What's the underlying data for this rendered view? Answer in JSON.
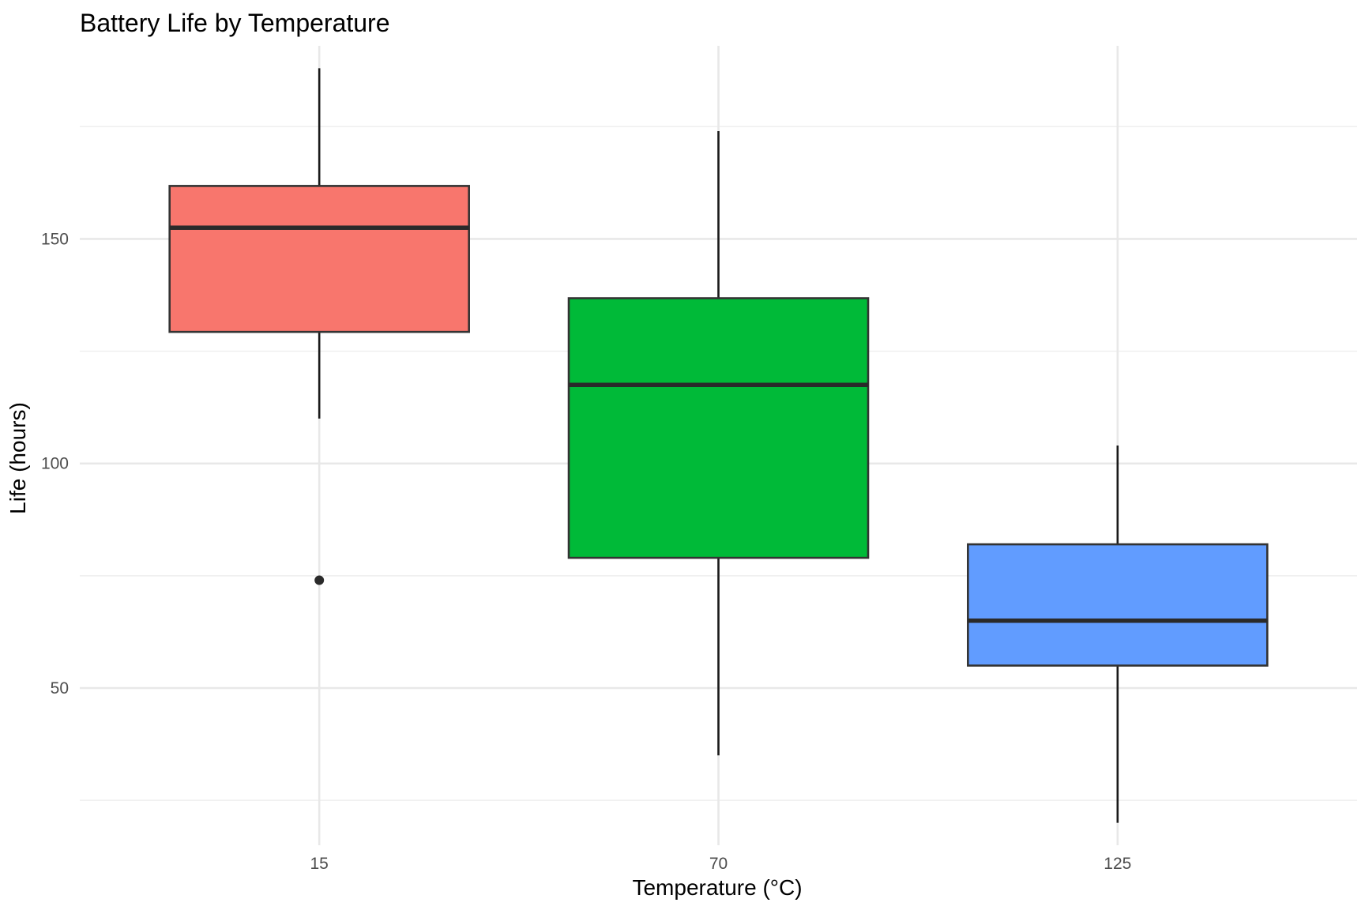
{
  "chart_data": {
    "type": "boxplot",
    "title": "Battery Life by Temperature",
    "xlabel": "Temperature (°C)",
    "ylabel": "Life (hours)",
    "categories": [
      "15",
      "70",
      "125"
    ],
    "ylim": [
      15,
      193
    ],
    "yticks": [
      50,
      100,
      150
    ],
    "grid": true,
    "legend": "none",
    "boxes": [
      {
        "category": "15",
        "min": 110,
        "q1": 129.3,
        "median": 152.5,
        "q3": 161.8,
        "max": 188,
        "outliers": [
          74
        ],
        "color": "#F8766D"
      },
      {
        "category": "70",
        "min": 35,
        "q1": 79,
        "median": 117.5,
        "q3": 136.8,
        "max": 174,
        "outliers": [],
        "color": "#00BA38"
      },
      {
        "category": "125",
        "min": 20,
        "q1": 55,
        "median": 65,
        "q3": 82,
        "max": 104,
        "outliers": [],
        "color": "#619CFF"
      }
    ]
  }
}
